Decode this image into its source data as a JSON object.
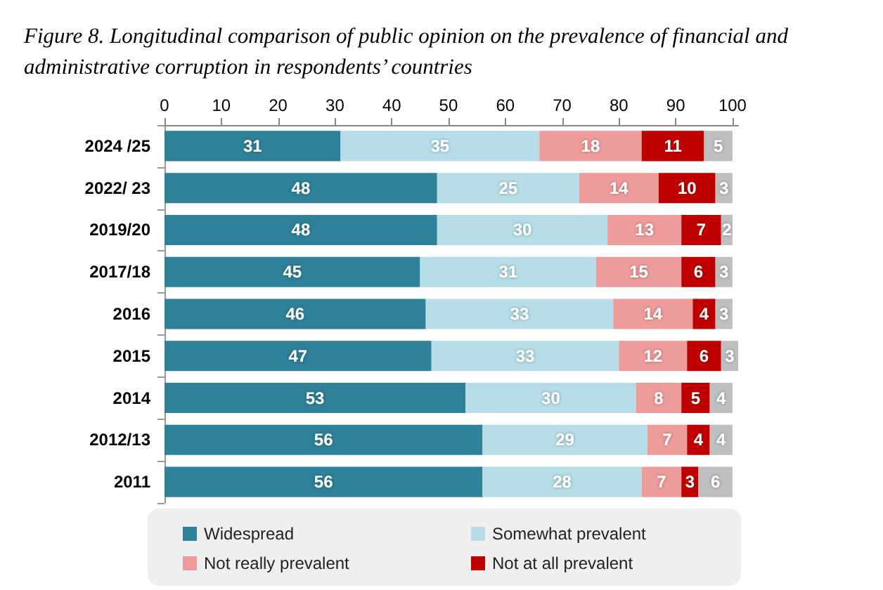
{
  "chart_data": {
    "type": "bar",
    "orientation": "horizontal",
    "stacked": true,
    "title": "Figure 8. Longitudinal comparison of public opinion on the prevalence of financial and administrative corruption in respondents’ countries",
    "categories": [
      "2024 /25",
      "2022/ 23",
      "2019/20",
      "2017/18",
      "2016",
      "2015",
      "2014",
      "2012/13",
      "2011"
    ],
    "series": [
      {
        "name": "Widespread",
        "color": "#2e8199",
        "values": [
          31,
          48,
          48,
          45,
          46,
          47,
          53,
          56,
          56
        ]
      },
      {
        "name": "Somewhat prevalent",
        "color": "#b6dde8",
        "values": [
          35,
          25,
          30,
          31,
          33,
          33,
          30,
          29,
          28
        ]
      },
      {
        "name": "Not really prevalent",
        "color": "#ee9b9b",
        "values": [
          18,
          14,
          13,
          15,
          14,
          12,
          8,
          7,
          7
        ]
      },
      {
        "name": "Not at all prevalent",
        "color": "#c00000",
        "values": [
          11,
          10,
          7,
          6,
          4,
          6,
          5,
          4,
          3
        ]
      },
      {
        "color": "#bfbfbf",
        "values": [
          5,
          3,
          2,
          3,
          3,
          3,
          4,
          4,
          6
        ]
      }
    ],
    "xlim": [
      0,
      101
    ],
    "xticks": [
      0,
      10,
      20,
      30,
      40,
      50,
      60,
      70,
      80,
      90,
      100
    ],
    "data_labels": true,
    "legend": "bottom"
  }
}
